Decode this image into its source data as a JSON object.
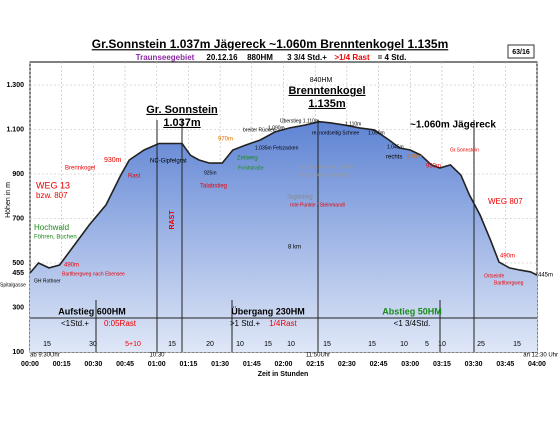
{
  "chart_data": {
    "type": "area",
    "title": "Gr.Sonnstein 1.037m  Jägereck ~1.060m  Brenntenkogel 1.135m",
    "badge": "63/16",
    "subtitle": [
      "Traunseegebiet",
      "20.12.16",
      "880HM",
      "3 3/4 Std.+",
      ">1/4 Rast",
      "= 4 Std."
    ],
    "note": [
      "ab Haid 74km;",
      "50 Min."
    ],
    "ylabel": "Höhen in m",
    "xlabel": "Zeit in Stunden",
    "x": [
      0,
      4,
      9,
      14,
      21,
      28,
      36,
      43,
      47,
      54,
      61,
      72,
      76,
      80,
      85,
      91,
      96,
      102,
      109,
      116,
      123,
      130,
      137,
      142,
      149,
      156,
      163,
      170,
      175,
      180,
      185,
      190,
      194,
      199,
      204,
      208,
      213,
      218,
      222,
      227,
      232,
      237,
      240
    ],
    "values": [
      455,
      500,
      478,
      491,
      581,
      671,
      761,
      895,
      963,
      1008,
      1037,
      1037,
      984,
      963,
      949,
      949,
      1008,
      1030,
      1053,
      1089,
      1107,
      1120,
      1135,
      1130,
      1120,
      1107,
      1098,
      1053,
      1017,
      1008,
      985,
      941,
      927,
      941,
      895,
      806,
      716,
      603,
      504,
      478,
      468,
      460,
      445
    ],
    "xlim": [
      0,
      240
    ],
    "ylim": [
      100,
      1300
    ],
    "xticks": [
      {
        "value": 0,
        "label": "00:00"
      },
      {
        "value": 15,
        "label": "00:15"
      },
      {
        "value": 30,
        "label": "00:30"
      },
      {
        "value": 45,
        "label": "00:45"
      },
      {
        "value": 60,
        "label": "01:00"
      },
      {
        "value": 75,
        "label": "01:15"
      },
      {
        "value": 90,
        "label": "01:30"
      },
      {
        "value": 105,
        "label": "01:45"
      },
      {
        "value": 120,
        "label": "02:00"
      },
      {
        "value": 135,
        "label": "02:15"
      },
      {
        "value": 150,
        "label": "02:30"
      },
      {
        "value": 165,
        "label": "02:45"
      },
      {
        "value": 180,
        "label": "03:00"
      },
      {
        "value": 195,
        "label": "03:15"
      },
      {
        "value": 210,
        "label": "03:30"
      },
      {
        "value": 225,
        "label": "03:45"
      },
      {
        "value": 240,
        "label": "04:00"
      }
    ],
    "yticks": [
      100,
      300,
      455,
      500,
      700,
      900,
      {
        "value": 1100,
        "label": "1.100"
      },
      {
        "value": 1300,
        "label": "1.300"
      }
    ],
    "grid": true,
    "color": "#222222",
    "peaks": [
      "Gr. Sonnstein",
      "1.037m",
      "Brenntenkogel",
      "1.135m",
      "~1.060m Jägereck",
      "840HM"
    ],
    "annotations": [
      "WEG 13",
      "bzw. 807",
      "Hochwald",
      "Föhren, Buchen",
      "Brennkogel",
      "930m",
      "Rast",
      "490m",
      "Bartlbergweg nach Ebensee",
      "GH Rothner",
      "Spitalgasse",
      "NC-Gipfelgrat",
      "RAST",
      "Talabstieg",
      "925m",
      "970m",
      "Zeilweg",
      "breiter Rücken",
      "1.090m",
      "Überstieg 1.110m",
      "Forststraße",
      "1.035m Felszacken",
      "re. nordseitig Schnee",
      "1.110m",
      "1.090m",
      "1.045m",
      "rechts",
      "970m",
      "ab dem Rücken 1.070m",
      "Gr.Zacken li. umgehen",
      "Jagdsteig",
      "rote Punkte / Steinmandl",
      "8 km",
      "Gr.Sonnstein",
      "930m",
      "WEG 807",
      "490m",
      "Ortseinfe",
      "Bartlbergweg",
      "445m"
    ],
    "sections": [
      "Aufstieg 600HM",
      "<1Std.+",
      "0:05Rast",
      "Übergang  230HM",
      ">1 Std.+",
      "1/4Rast",
      "Abstieg 50HM",
      "<1 3/4Std."
    ],
    "durations": [
      "15",
      "30",
      "5+10",
      "15",
      "20",
      "10",
      "15",
      "10",
      "15",
      "15",
      "10",
      "5",
      "10",
      "25",
      "15"
    ],
    "clock": [
      "ab 9:30Uhr",
      "10:30",
      "11:50Uhr",
      "an 12:30 Uhr"
    ]
  }
}
